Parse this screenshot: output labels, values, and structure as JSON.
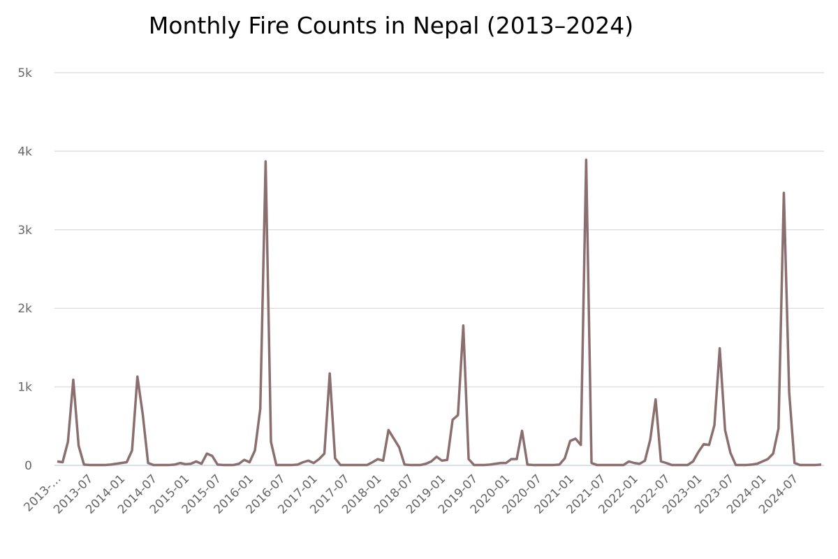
{
  "chart_data": {
    "type": "line",
    "title": "Monthly Fire Counts in Nepal (2013–2024)",
    "categories": [
      "2013-…",
      null,
      null,
      null,
      null,
      null,
      "2013-07",
      null,
      null,
      null,
      null,
      null,
      "2014-01",
      null,
      null,
      null,
      null,
      null,
      "2014-07",
      null,
      null,
      null,
      null,
      null,
      "2015-01",
      null,
      null,
      null,
      null,
      null,
      "2015-07",
      null,
      null,
      null,
      null,
      null,
      "2016-01",
      null,
      null,
      null,
      null,
      null,
      "2016-07",
      null,
      null,
      null,
      null,
      null,
      "2017-01",
      null,
      null,
      null,
      null,
      null,
      "2017-07",
      null,
      null,
      null,
      null,
      null,
      "2018-01",
      null,
      null,
      null,
      null,
      null,
      "2018-07",
      null,
      null,
      null,
      null,
      null,
      "2019-01",
      null,
      null,
      null,
      null,
      null,
      "2019-07",
      null,
      null,
      null,
      null,
      null,
      "2020-01",
      null,
      null,
      null,
      null,
      null,
      "2020-07",
      null,
      null,
      null,
      null,
      null,
      "2021-01",
      null,
      null,
      null,
      null,
      null,
      "2021-07",
      null,
      null,
      null,
      null,
      null,
      "2022-01",
      null,
      null,
      null,
      null,
      null,
      "2022-07",
      null,
      null,
      null,
      null,
      null,
      "2023-01",
      null,
      null,
      null,
      null,
      null,
      "2023-07",
      null,
      null,
      null,
      null,
      null,
      "2024-01",
      null,
      null,
      null,
      null,
      null,
      "2024-07",
      null,
      null,
      null,
      null,
      null
    ],
    "series": [
      {
        "name": "Fire Count",
        "color": "#8b6e6e",
        "values": [
          50,
          40,
          300,
          1090,
          250,
          10,
          5,
          5,
          5,
          5,
          10,
          20,
          30,
          40,
          190,
          1130,
          650,
          30,
          5,
          5,
          5,
          5,
          10,
          30,
          15,
          20,
          50,
          20,
          150,
          120,
          10,
          5,
          5,
          5,
          20,
          70,
          40,
          190,
          720,
          3870,
          300,
          5,
          5,
          5,
          5,
          10,
          40,
          60,
          30,
          80,
          150,
          1170,
          90,
          5,
          5,
          5,
          5,
          5,
          5,
          40,
          80,
          60,
          450,
          340,
          230,
          10,
          5,
          5,
          5,
          20,
          50,
          110,
          60,
          70,
          580,
          640,
          1780,
          80,
          5,
          5,
          5,
          10,
          20,
          30,
          30,
          80,
          80,
          440,
          10,
          5,
          5,
          5,
          5,
          5,
          10,
          90,
          310,
          340,
          260,
          3890,
          30,
          5,
          5,
          5,
          5,
          5,
          5,
          50,
          30,
          20,
          60,
          330,
          840,
          50,
          30,
          5,
          5,
          5,
          5,
          50,
          170,
          270,
          260,
          510,
          1490,
          450,
          160,
          5,
          5,
          5,
          10,
          20,
          50,
          80,
          150,
          470,
          3470,
          930,
          30,
          5,
          5,
          5,
          5,
          10
        ]
      }
    ],
    "ylim": [
      0,
      5000
    ],
    "yticks": [
      0,
      {
        "value": 1000,
        "label": "1k"
      },
      {
        "value": 2000,
        "label": "2k"
      },
      {
        "value": 3000,
        "label": "3k"
      },
      {
        "value": 4000,
        "label": "4k"
      },
      {
        "value": 5000,
        "label": "5k"
      }
    ],
    "grid": true
  }
}
